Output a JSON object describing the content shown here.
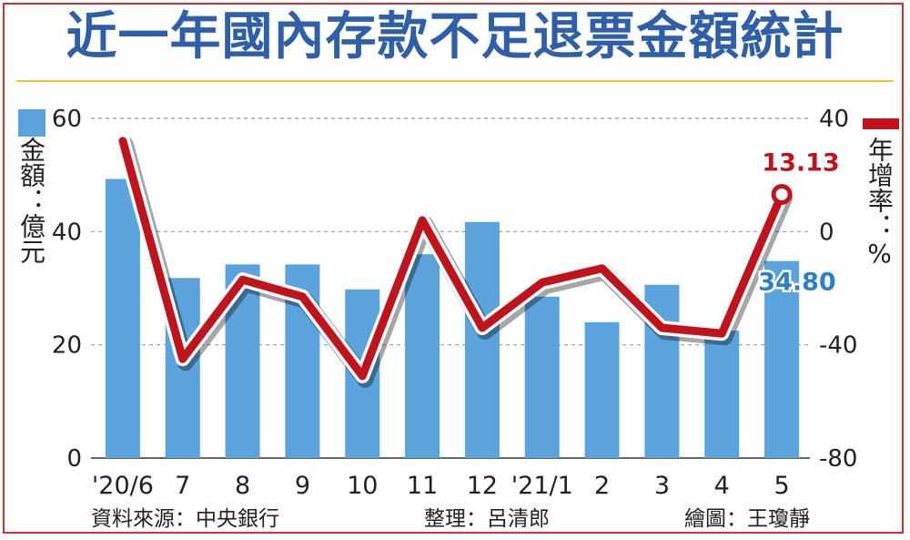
{
  "title": "近一年國內存款不足退票金額統計",
  "left_axis_label": "金額：億元",
  "right_axis_label": "年增率：%",
  "colors": {
    "bars": "#5ba3dc",
    "line": "#c0141d",
    "title": "#2e5fa8",
    "frame": "#d42e35"
  },
  "footer": {
    "source": "資料來源：中央銀行",
    "compiler": "整理：呂清郎",
    "illustrator": "繪圖：王瓊靜"
  },
  "chart_data": {
    "type": "bar",
    "categories": [
      "'20/6",
      "7",
      "8",
      "9",
      "10",
      "11",
      "12",
      "'21/1",
      "2",
      "3",
      "4",
      "5"
    ],
    "series": [
      {
        "name": "金額",
        "axis": "left",
        "type": "bar",
        "values": [
          49.3,
          31.8,
          34.2,
          34.2,
          29.8,
          36.0,
          41.7,
          28.5,
          24.0,
          30.6,
          22.5,
          34.8
        ]
      },
      {
        "name": "年增率",
        "axis": "right",
        "type": "line",
        "values": [
          32.0,
          -45.0,
          -17.0,
          -23.0,
          -51.0,
          4.0,
          -34.0,
          -18.0,
          -13.0,
          -34.0,
          -36.0,
          13.13
        ]
      }
    ],
    "left_axis": {
      "ylim": [
        0,
        60
      ],
      "ticks": [
        0,
        20,
        40,
        60
      ]
    },
    "right_axis": {
      "ylim": [
        -80,
        40
      ],
      "ticks": [
        "-80",
        "-40",
        "0",
        "40"
      ]
    },
    "annotations": [
      {
        "series": "年增率",
        "index": 11,
        "text": "13.13"
      },
      {
        "series": "金額",
        "index": 11,
        "text": "34.80"
      }
    ]
  }
}
